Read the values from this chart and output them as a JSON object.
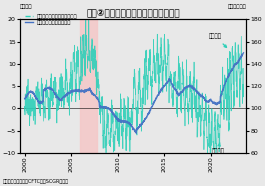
{
  "title": "図表②　投機筋のポジションと円相場",
  "left_label": "（万枚）",
  "right_label_top": "（円／ドル）",
  "legend_spec": "━━ 投機筋（非商業部門・差引）",
  "legend_usdjpy": "━━ 対ドルの円相場（右軸）",
  "source_text": "（出所：日本銀行、CFTCよりSCGR作成）",
  "ylim_left": [
    -10,
    20
  ],
  "ylim_right": [
    60,
    180
  ],
  "xlim": [
    1999.5,
    2023.8
  ],
  "xticks": [
    2000,
    2005,
    2010,
    2015,
    2020
  ],
  "yticks_left": [
    -10,
    -5,
    0,
    5,
    10,
    15,
    20
  ],
  "yticks_right": [
    60,
    80,
    100,
    120,
    140,
    160,
    180
  ],
  "annotation_sell": "売り越し",
  "annotation_buy": "買い越し",
  "highlight_start": 2006.0,
  "highlight_end": 2007.8,
  "highlight_color": "#f5c6c6",
  "teal_color": "#2ecfb8",
  "blue_color": "#4472c4",
  "bg_color": "#e8e8e8",
  "title_fontsize": 6.5,
  "tick_fontsize": 4.5,
  "legend_fontsize": 3.8,
  "source_fontsize": 3.5,
  "annotation_fontsize": 4.0
}
